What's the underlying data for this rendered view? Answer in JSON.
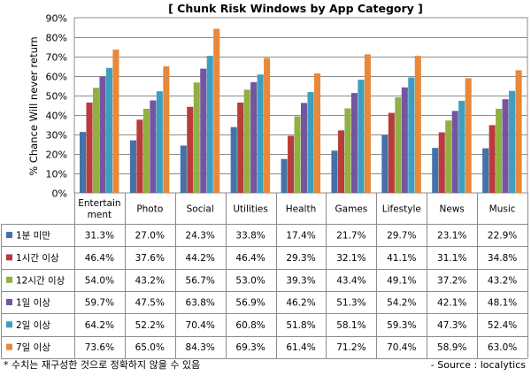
{
  "chart_data": {
    "type": "bar",
    "title": "[ Chunk Risk Windows by App Category ]",
    "ylabel": "% Chance Will never return",
    "xlabel": "",
    "ylim": [
      0,
      90
    ],
    "yticks": [
      0,
      10,
      20,
      30,
      40,
      50,
      60,
      70,
      80,
      90
    ],
    "ytick_labels": [
      "0%",
      "10%",
      "20%",
      "30%",
      "40%",
      "50%",
      "60%",
      "70%",
      "80%",
      "90%"
    ],
    "grid": true,
    "legend": "table-left",
    "categories": [
      "Entertainment",
      "Photo",
      "Social",
      "Utilities",
      "Health",
      "Games",
      "Lifestyle",
      "News",
      "Music"
    ],
    "category_labels": [
      [
        "Entertain",
        "ment"
      ],
      [
        "Photo"
      ],
      [
        "Social"
      ],
      [
        "Utilities"
      ],
      [
        "Health"
      ],
      [
        "Games"
      ],
      [
        "Lifestyle"
      ],
      [
        "News"
      ],
      [
        "Music"
      ]
    ],
    "series": [
      {
        "name": "1분 미만",
        "color": "#4472a8",
        "values": [
          31.3,
          27.0,
          24.3,
          33.8,
          17.4,
          21.7,
          29.7,
          23.1,
          22.9
        ],
        "labels": [
          "31.3%",
          "27.0%",
          "24.3%",
          "33.8%",
          "17.4%",
          "21.7%",
          "29.7%",
          "23.1%",
          "22.9%"
        ]
      },
      {
        "name": "1시간 이상",
        "color": "#b83c3c",
        "values": [
          46.4,
          37.6,
          44.2,
          46.4,
          29.3,
          32.1,
          41.1,
          31.1,
          34.8
        ],
        "labels": [
          "46.4%",
          "37.6%",
          "44.2%",
          "46.4%",
          "29.3%",
          "32.1%",
          "41.1%",
          "31.1%",
          "34.8%"
        ]
      },
      {
        "name": "12시간 이상",
        "color": "#90b044",
        "values": [
          54.0,
          43.2,
          56.7,
          53.0,
          39.3,
          43.4,
          49.1,
          37.2,
          43.2
        ],
        "labels": [
          "54.0%",
          "43.2%",
          "56.7%",
          "53.0%",
          "39.3%",
          "43.4%",
          "49.1%",
          "37.2%",
          "43.2%"
        ]
      },
      {
        "name": "1일 이상",
        "color": "#7455a0",
        "values": [
          59.7,
          47.5,
          63.8,
          56.9,
          46.2,
          51.3,
          54.2,
          42.1,
          48.1
        ],
        "labels": [
          "59.7%",
          "47.5%",
          "63.8%",
          "56.9%",
          "46.2%",
          "51.3%",
          "54.2%",
          "42.1%",
          "48.1%"
        ]
      },
      {
        "name": "2일 이상",
        "color": "#3c9fc0",
        "values": [
          64.2,
          52.2,
          70.4,
          60.8,
          51.8,
          58.1,
          59.3,
          47.3,
          52.4
        ],
        "labels": [
          "64.2%",
          "52.2%",
          "70.4%",
          "60.8%",
          "51.8%",
          "58.1%",
          "59.3%",
          "47.3%",
          "52.4%"
        ]
      },
      {
        "name": "7일 이상",
        "color": "#e8883a",
        "values": [
          73.6,
          65.0,
          84.3,
          69.3,
          61.4,
          71.2,
          70.4,
          58.9,
          63.0
        ],
        "labels": [
          "73.6%",
          "65.0%",
          "84.3%",
          "69.3%",
          "61.4%",
          "71.2%",
          "70.4%",
          "58.9%",
          "63.0%"
        ]
      }
    ]
  },
  "footer": {
    "note": "* 수치는 재구성한 것으로 정확하지 않을 수 있음",
    "source": "- Source : localytics"
  }
}
